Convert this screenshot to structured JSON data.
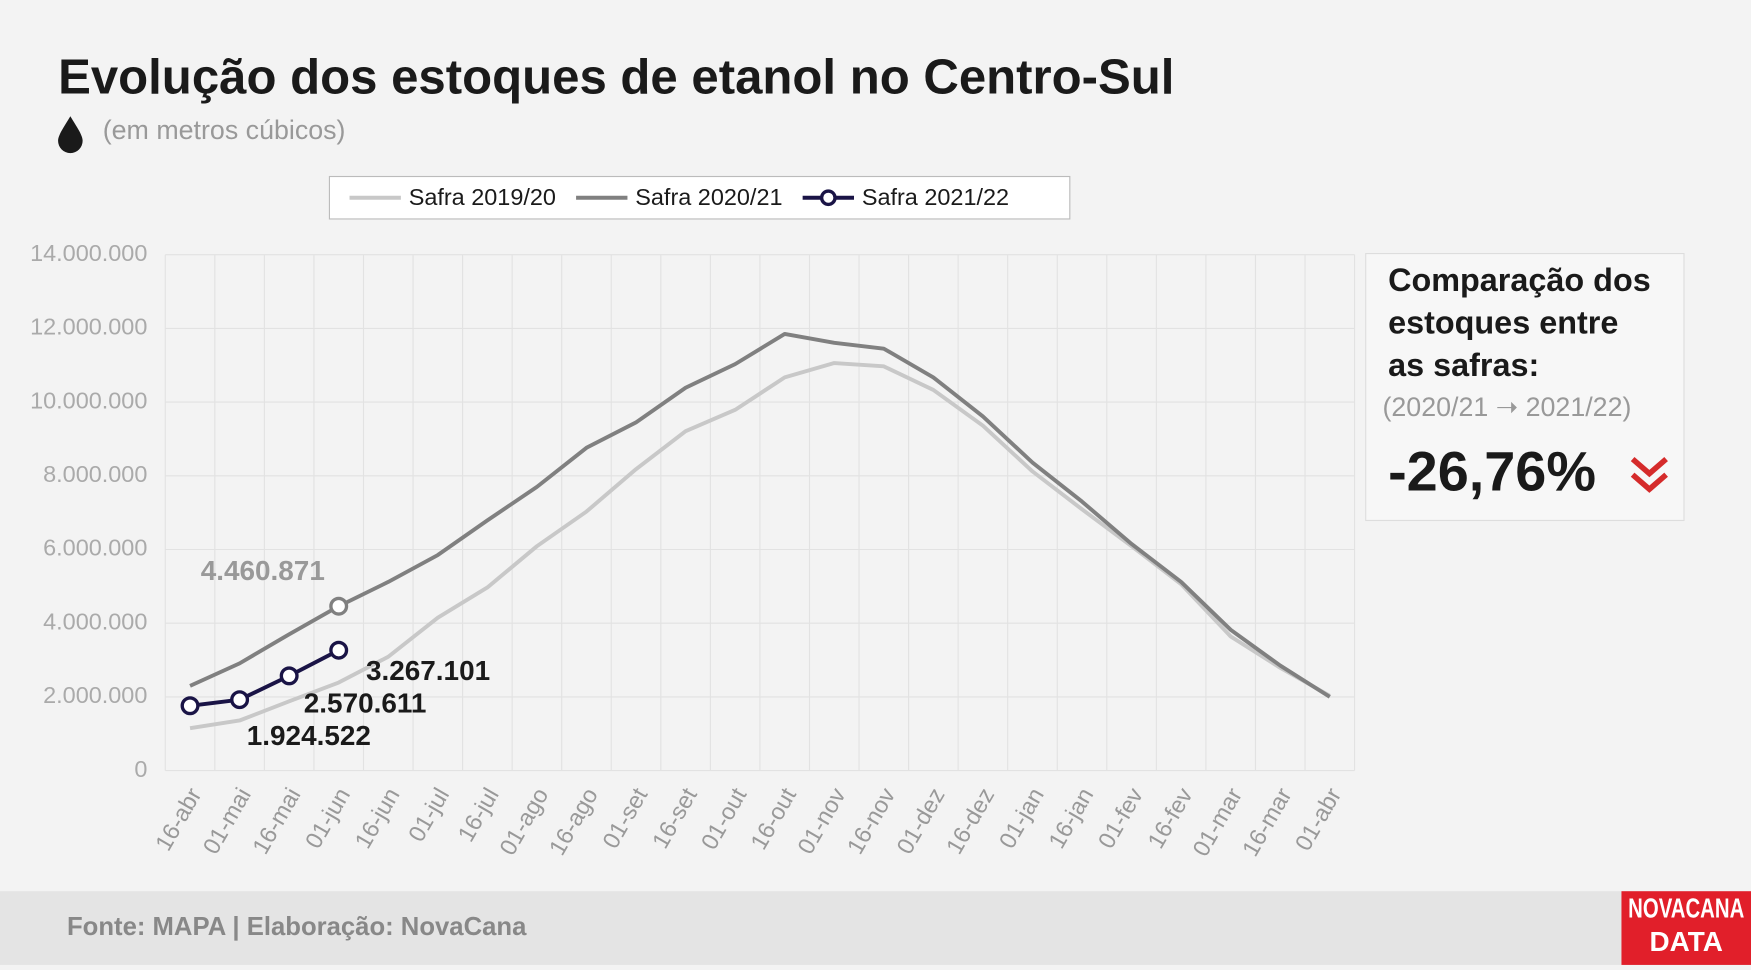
{
  "chart_data": {
    "type": "line",
    "title": "Evolução dos estoques de etanol no Centro-Sul",
    "subtitle": "(em metros cúbicos)",
    "categories": [
      "16-abr",
      "01-mai",
      "16-mai",
      "01-jun",
      "16-jun",
      "01-jul",
      "16-jul",
      "01-ago",
      "16-ago",
      "01-set",
      "16-set",
      "01-out",
      "16-out",
      "01-nov",
      "16-nov",
      "01-dez",
      "16-dez",
      "01-jan",
      "16-jan",
      "01-fev",
      "16-fev",
      "01-mar",
      "16-mar",
      "01-abr"
    ],
    "series": [
      {
        "name": "Safra 2019/20",
        "color": "#c8c8c8",
        "values": [
          1150000,
          1360000,
          1880000,
          2390000,
          3090000,
          4150000,
          4970000,
          6090000,
          7030000,
          8180000,
          9210000,
          9790000,
          10670000,
          11060000,
          10970000,
          10330000,
          9360000,
          8120000,
          7090000,
          6090000,
          5060000,
          3640000,
          2790000,
          2030000
        ]
      },
      {
        "name": "Safra 2020/21",
        "color": "#808080",
        "values": [
          2300000,
          2910000,
          3700000,
          4460871,
          5120000,
          5850000,
          6790000,
          7700000,
          8760000,
          9450000,
          10390000,
          11030000,
          11850000,
          11610000,
          11450000,
          10670000,
          9610000,
          8360000,
          7300000,
          6150000,
          5120000,
          3820000,
          2850000,
          2000000
        ],
        "value_labels": [
          null,
          null,
          null,
          "4.460.871",
          null,
          null,
          null,
          null,
          null,
          null,
          null,
          null,
          null,
          null,
          null,
          null,
          null,
          null,
          null,
          null,
          null,
          null,
          null,
          null
        ]
      },
      {
        "name": "Safra 2021/22",
        "color": "#1a1446",
        "marker": true,
        "values": [
          1760000,
          1924522,
          2570611,
          3267101,
          null,
          null,
          null,
          null,
          null,
          null,
          null,
          null,
          null,
          null,
          null,
          null,
          null,
          null,
          null,
          null,
          null,
          null,
          null,
          null
        ],
        "value_labels": [
          null,
          "1.924.522",
          "2.570.611",
          "3.267.101",
          null,
          null,
          null,
          null,
          null,
          null,
          null,
          null,
          null,
          null,
          null,
          null,
          null,
          null,
          null,
          null,
          null,
          null,
          null,
          null
        ]
      }
    ],
    "ylim": [
      0,
      14000000
    ],
    "yticks": [
      0,
      {
        "value": 2000000,
        "label": "2.000.000"
      },
      {
        "value": 4000000,
        "label": "4.000.000"
      },
      {
        "value": 6000000,
        "label": "6.000.000"
      },
      {
        "value": 8000000,
        "label": "8.000.000"
      },
      {
        "value": 10000000,
        "label": "10.000.000"
      },
      {
        "value": 12000000,
        "label": "12.000.000"
      },
      {
        "value": 14000000,
        "label": "14.000.000"
      }
    ],
    "grid": true,
    "legend": "top"
  },
  "comparison": {
    "lines": [
      "Comparação dos",
      "estoques entre",
      "as safras:"
    ],
    "period": "(2020/21 ➝ 2021/22)",
    "change": "-26,76%"
  },
  "footer": {
    "source": "Fonte: MAPA  | Elaboração: NovaCana",
    "logo": [
      "NOVACANA",
      "DATA"
    ]
  }
}
